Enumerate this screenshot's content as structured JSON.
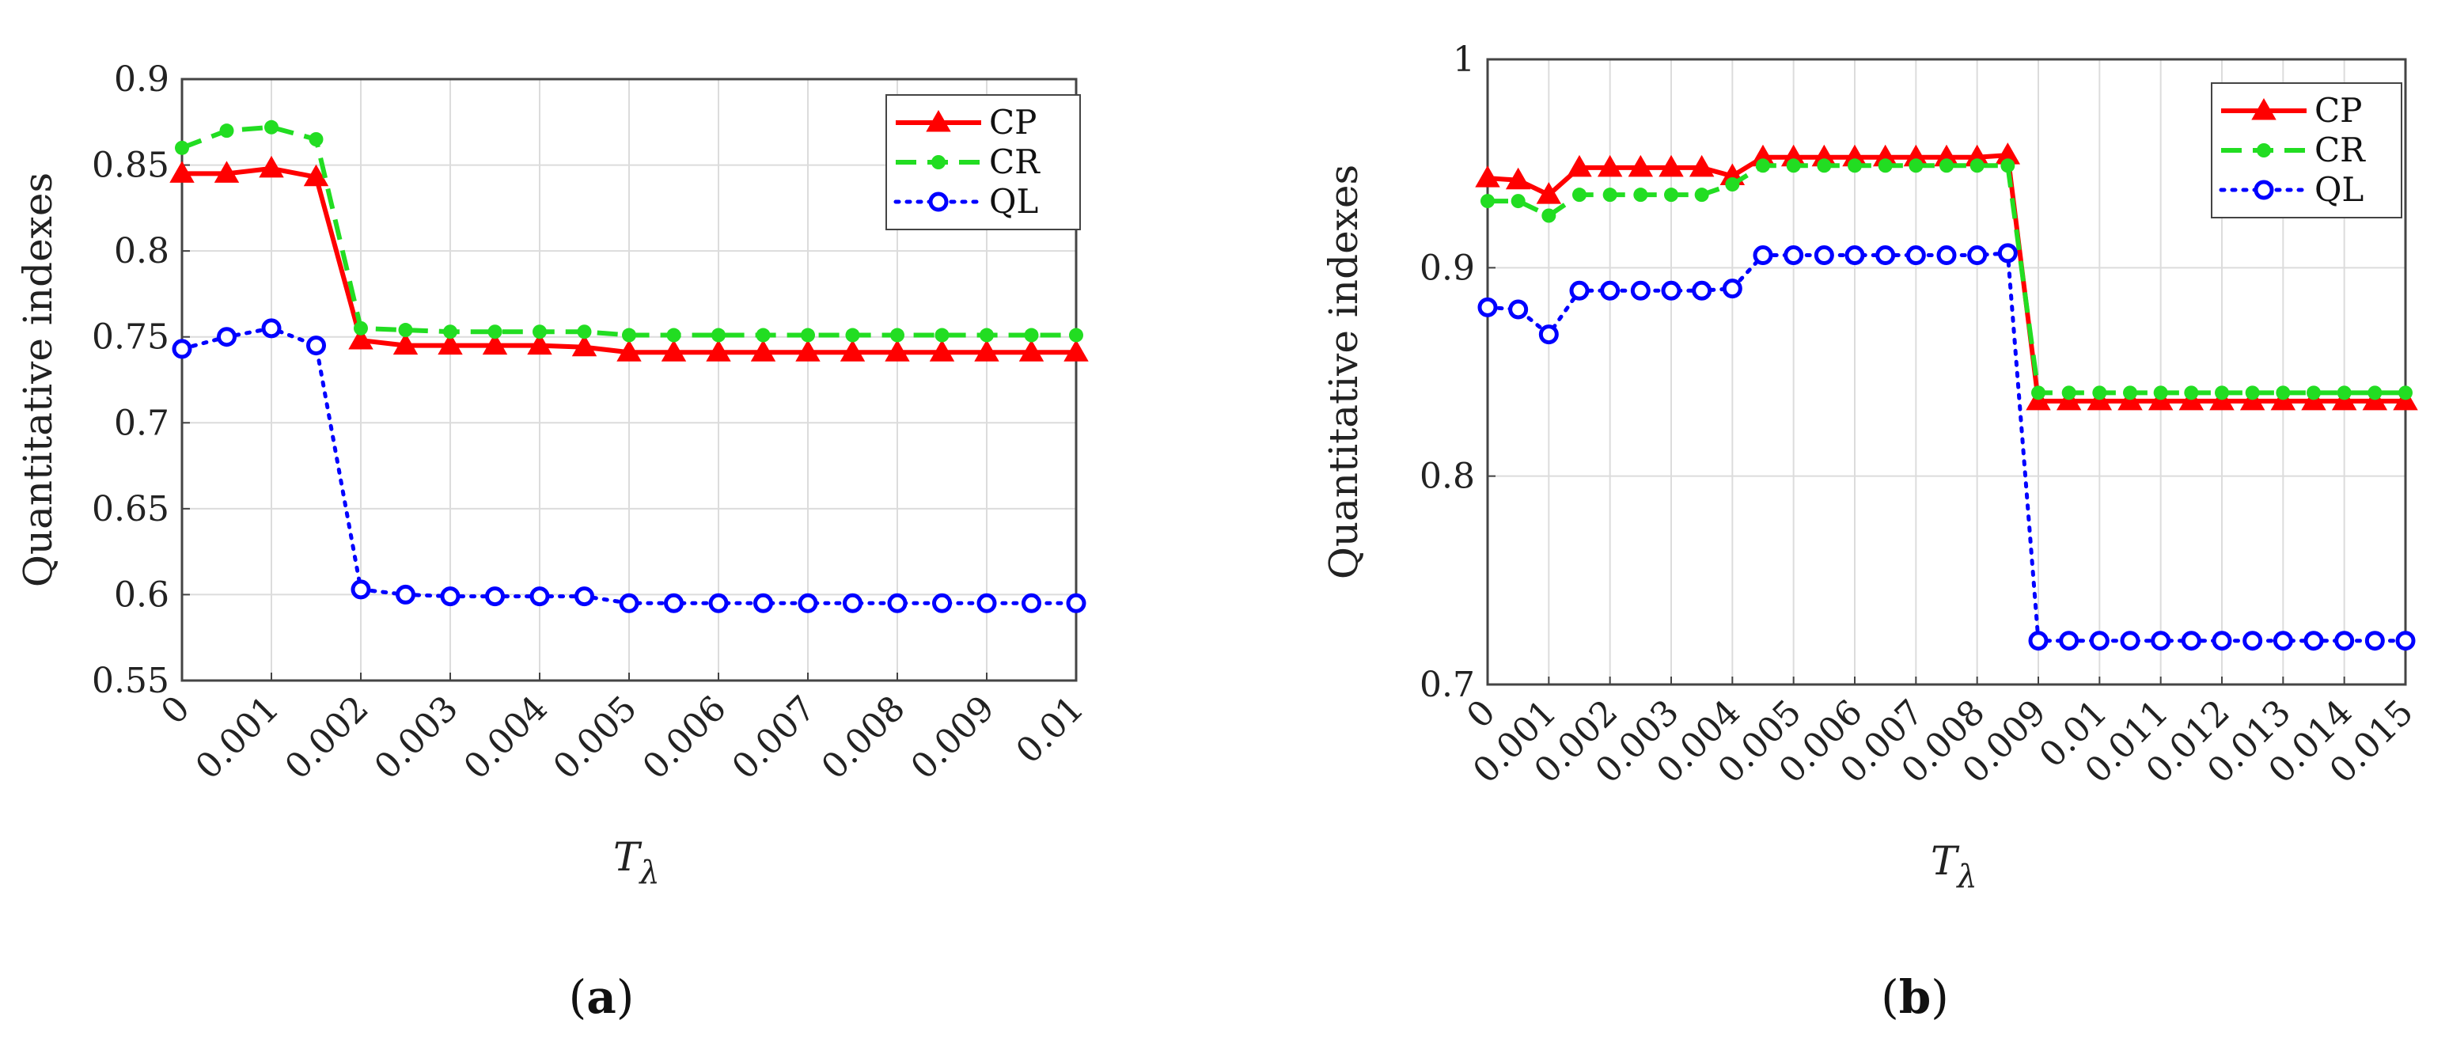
{
  "chart_data": [
    {
      "type": "line",
      "panel_label": "(a)",
      "panel_letter": "a",
      "ylabel": "Quantitative indexes",
      "xlabel_main": "T",
      "xlabel_sub": "λ",
      "xlim": [
        0,
        0.01
      ],
      "ylim": [
        0.55,
        0.9
      ],
      "yticks": [
        0.55,
        0.6,
        0.65,
        0.7,
        0.75,
        0.8,
        0.85,
        0.9
      ],
      "ytick_labels": [
        "0.55",
        "0.6",
        "0.65",
        "0.7",
        "0.75",
        "0.8",
        "0.85",
        "0.9"
      ],
      "xticks": [
        0,
        0.001,
        0.002,
        0.003,
        0.004,
        0.005,
        0.006,
        0.007,
        0.008,
        0.009,
        0.01
      ],
      "xtick_labels": [
        "0",
        "0.001",
        "0.002",
        "0.003",
        "0.004",
        "0.005",
        "0.006",
        "0.007",
        "0.008",
        "0.009",
        "0.01"
      ],
      "grid": true,
      "legend_position": "top-right",
      "x": [
        0,
        0.0005,
        0.001,
        0.0015,
        0.002,
        0.0025,
        0.003,
        0.0035,
        0.004,
        0.0045,
        0.005,
        0.0055,
        0.006,
        0.0065,
        0.007,
        0.0075,
        0.008,
        0.0085,
        0.009,
        0.0095,
        0.01
      ],
      "series": [
        {
          "name": "CP",
          "color": "#ff0000",
          "style": "solid",
          "marker": "triangle",
          "values": [
            0.845,
            0.845,
            0.848,
            0.843,
            0.748,
            0.745,
            0.745,
            0.745,
            0.745,
            0.744,
            0.741,
            0.741,
            0.741,
            0.741,
            0.741,
            0.741,
            0.741,
            0.741,
            0.741,
            0.741,
            0.741
          ]
        },
        {
          "name": "CR",
          "color": "#22dd22",
          "style": "dashed",
          "marker": "dot",
          "values": [
            0.86,
            0.87,
            0.872,
            0.865,
            0.755,
            0.754,
            0.753,
            0.753,
            0.753,
            0.753,
            0.751,
            0.751,
            0.751,
            0.751,
            0.751,
            0.751,
            0.751,
            0.751,
            0.751,
            0.751,
            0.751
          ]
        },
        {
          "name": "QL",
          "color": "#0000ff",
          "style": "dotted",
          "marker": "circle",
          "values": [
            0.743,
            0.75,
            0.755,
            0.745,
            0.603,
            0.6,
            0.599,
            0.599,
            0.599,
            0.599,
            0.595,
            0.595,
            0.595,
            0.595,
            0.595,
            0.595,
            0.595,
            0.595,
            0.595,
            0.595,
            0.595
          ]
        }
      ]
    },
    {
      "type": "line",
      "panel_label": "(b)",
      "panel_letter": "b",
      "ylabel": "Quantitative indexes",
      "xlabel_main": "T",
      "xlabel_sub": "λ",
      "xlim": [
        0,
        0.015
      ],
      "ylim": [
        0.7,
        1.0
      ],
      "yticks": [
        0.7,
        0.8,
        0.9,
        1.0
      ],
      "ytick_labels": [
        "0.7",
        "0.8",
        "0.9",
        "1"
      ],
      "xticks": [
        0,
        0.001,
        0.002,
        0.003,
        0.004,
        0.005,
        0.006,
        0.007,
        0.008,
        0.009,
        0.01,
        0.011,
        0.012,
        0.013,
        0.014,
        0.015
      ],
      "xtick_labels": [
        "0",
        "0.001",
        "0.002",
        "0.003",
        "0.004",
        "0.005",
        "0.006",
        "0.007",
        "0.008",
        "0.009",
        "0.01",
        "0.011",
        "0.012",
        "0.013",
        "0.014",
        "0.015"
      ],
      "grid": true,
      "legend_position": "top-right",
      "x": [
        0,
        0.0005,
        0.001,
        0.0015,
        0.002,
        0.0025,
        0.003,
        0.0035,
        0.004,
        0.0045,
        0.005,
        0.0055,
        0.006,
        0.0065,
        0.007,
        0.0075,
        0.008,
        0.0085,
        0.009,
        0.0095,
        0.01,
        0.0105,
        0.011,
        0.0115,
        0.012,
        0.0125,
        0.013,
        0.0135,
        0.014,
        0.0145,
        0.015
      ],
      "series": [
        {
          "name": "CP",
          "color": "#ff0000",
          "style": "solid",
          "marker": "triangle",
          "values": [
            0.943,
            0.942,
            0.935,
            0.948,
            0.948,
            0.948,
            0.948,
            0.948,
            0.944,
            0.953,
            0.953,
            0.953,
            0.953,
            0.953,
            0.953,
            0.953,
            0.953,
            0.954,
            0.836,
            0.836,
            0.836,
            0.836,
            0.836,
            0.836,
            0.836,
            0.836,
            0.836,
            0.836,
            0.836,
            0.836,
            0.836
          ]
        },
        {
          "name": "CR",
          "color": "#22dd22",
          "style": "dashed",
          "marker": "dot",
          "values": [
            0.932,
            0.932,
            0.925,
            0.935,
            0.935,
            0.935,
            0.935,
            0.935,
            0.94,
            0.949,
            0.949,
            0.949,
            0.949,
            0.949,
            0.949,
            0.949,
            0.949,
            0.949,
            0.84,
            0.84,
            0.84,
            0.84,
            0.84,
            0.84,
            0.84,
            0.84,
            0.84,
            0.84,
            0.84,
            0.84,
            0.84
          ]
        },
        {
          "name": "QL",
          "color": "#0000ff",
          "style": "dotted",
          "marker": "circle",
          "values": [
            0.881,
            0.88,
            0.868,
            0.889,
            0.889,
            0.889,
            0.889,
            0.889,
            0.89,
            0.906,
            0.906,
            0.906,
            0.906,
            0.906,
            0.906,
            0.906,
            0.906,
            0.907,
            0.721,
            0.721,
            0.721,
            0.721,
            0.721,
            0.721,
            0.721,
            0.721,
            0.721,
            0.721,
            0.721,
            0.721,
            0.721
          ]
        }
      ]
    }
  ]
}
